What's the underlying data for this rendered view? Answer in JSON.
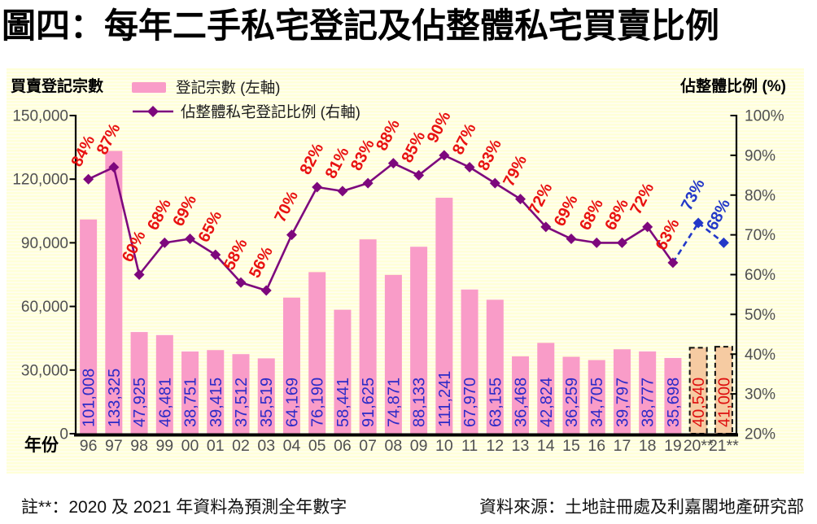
{
  "title": "圖四：每年二手私宅登記及佔整體私宅買賣比例",
  "axes": {
    "left_header": "買賣登記宗數",
    "right_header": "佔整體比例 (%)",
    "x_axis_label": "年份",
    "left_ticks": [
      "150,000",
      "120,000",
      "90,000",
      "60,000",
      "30,000",
      "0"
    ],
    "right_ticks": [
      "100%",
      "90%",
      "80%",
      "70%",
      "60%",
      "50%",
      "40%",
      "30%",
      "20%"
    ]
  },
  "legend": {
    "bar_label": "登記宗數 (左軸)",
    "line_label": "佔整體私宅登記比例 (右軸)"
  },
  "notes": {
    "footnote": "註**：2020 及 2021 年資料為預測全年數字",
    "source": "資料來源：土地註冊處及利嘉閣地產研究部"
  },
  "chart_data": {
    "type": "bar",
    "combo": "bar+line, dual axis",
    "grid": false,
    "legend_position": "top",
    "categories": [
      "96",
      "97",
      "98",
      "99",
      "00",
      "01",
      "02",
      "03",
      "04",
      "05",
      "06",
      "07",
      "08",
      "09",
      "10",
      "11",
      "12",
      "13",
      "14",
      "15",
      "16",
      "17",
      "18",
      "19",
      "20**",
      "21**"
    ],
    "series": [
      {
        "name": "登記宗數 (左軸)",
        "type": "bar",
        "axis": "left",
        "values": [
          101008,
          133325,
          47925,
          46481,
          38751,
          39415,
          37512,
          35519,
          64169,
          76190,
          58441,
          91625,
          74871,
          88133,
          111241,
          67970,
          63155,
          36468,
          42824,
          36259,
          34705,
          39797,
          38777,
          35698,
          40540,
          41000
        ],
        "labels": [
          "101,008",
          "133,325",
          "47,925",
          "46,481",
          "38,751",
          "39,415",
          "37,512",
          "35,519",
          "64,169",
          "76,190",
          "58,441",
          "91,625",
          "74,871",
          "88,133",
          "111,241",
          "67,970",
          "63,155",
          "36,468",
          "42,824",
          "36,259",
          "34,705",
          "39,797",
          "38,777",
          "35,698",
          "40,540",
          "41,000"
        ]
      },
      {
        "name": "佔整體私宅登記比例 (右軸)",
        "type": "line",
        "axis": "right",
        "values": [
          84,
          87,
          60,
          68,
          69,
          65,
          58,
          56,
          70,
          82,
          81,
          83,
          88,
          85,
          90,
          87,
          83,
          79,
          72,
          69,
          68,
          68,
          72,
          63,
          73,
          68
        ],
        "labels": [
          "84%",
          "87%",
          "60%",
          "68%",
          "69%",
          "65%",
          "58%",
          "56%",
          "70%",
          "82%",
          "81%",
          "83%",
          "88%",
          "85%",
          "90%",
          "87%",
          "83%",
          "79%",
          "72%",
          "69%",
          "68%",
          "68%",
          "72%",
          "63%",
          "73%",
          "68%"
        ]
      }
    ],
    "forecast_start_index": 24,
    "left_axis": {
      "min": 0,
      "max": 150000,
      "step": 30000
    },
    "right_axis": {
      "min": 20,
      "max": 100,
      "step": 10,
      "unit": "%"
    },
    "colors": {
      "bar": "#F99CC8",
      "bar_forecast": "#F6CBA2",
      "line": "#7D087D",
      "forecast_line": "#2338C8",
      "bar_value_label": "#2B2BC8",
      "bar_value_label_forecast": "#DE1010",
      "pct_label": "#E81111",
      "pct_label_forecast": "#2338C8",
      "axis_line": "#000000",
      "tick_text": "#4F4F4F",
      "plot_bg": "#FFFFDC"
    }
  }
}
